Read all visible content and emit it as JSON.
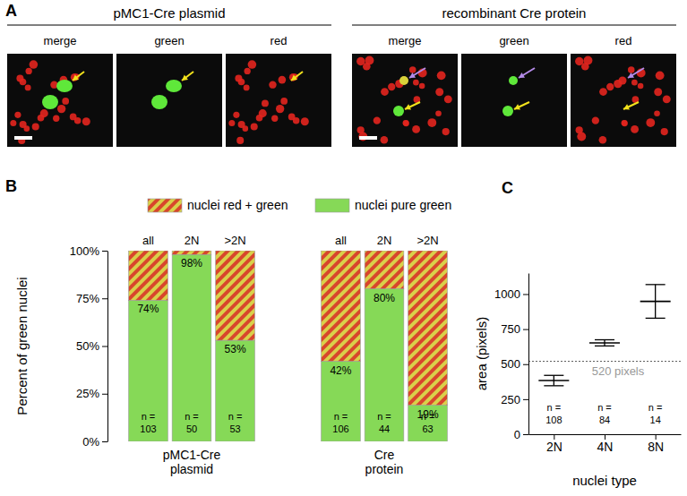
{
  "panel_a": {
    "label": "A",
    "groups": [
      {
        "title": "pMC1-Cre plasmid",
        "channels": [
          "merge",
          "green",
          "red"
        ]
      },
      {
        "title": "recombinant Cre protein",
        "channels": [
          "merge",
          "green",
          "red"
        ]
      }
    ]
  },
  "chart_data": [
    {
      "type": "bar",
      "panel": "B",
      "stacked": true,
      "legend": "top",
      "y_label": "Percent of green nuclei",
      "categories": [
        "all",
        "2N",
        ">2N",
        "all",
        "2N",
        ">2N"
      ],
      "groups": [
        "pMC1-Cre plasmid",
        "Cre protein"
      ],
      "series": [
        {
          "name": "nuclei pure green",
          "color": "#86d957",
          "values": [
            74,
            98,
            53,
            42,
            80,
            19
          ],
          "data_labels": true,
          "value_labels": [
            "74%",
            "98%",
            "53%",
            "42%",
            "80%",
            "19%"
          ]
        },
        {
          "name": "nuclei red + green",
          "color": "#d8462c",
          "values": [
            26,
            2,
            47,
            58,
            20,
            81
          ]
        }
      ],
      "n_label": "n =",
      "n": [
        103,
        50,
        53,
        106,
        44,
        63
      ],
      "ylim": [
        0,
        100
      ],
      "yticks": [
        {
          "value": 0,
          "label": "0%"
        },
        {
          "value": 25,
          "label": "25%"
        },
        {
          "value": 50,
          "label": "50%"
        },
        {
          "value": 75,
          "label": "75%"
        },
        {
          "value": 100,
          "label": "100%"
        }
      ]
    },
    {
      "type": "errorbar",
      "panel": "C",
      "y_label": "area (pixels)",
      "x_label": "nuclei type",
      "categories": [
        "2N",
        "4N",
        "8N"
      ],
      "values": [
        383,
        652,
        948
      ],
      "errors": [
        37,
        22,
        120
      ],
      "color": "#000000",
      "n_label": "n =",
      "n": [
        108,
        84,
        14
      ],
      "reference": {
        "value": 520,
        "label": "520 pixels"
      },
      "ylim": [
        0,
        1150
      ],
      "yticks": [
        0,
        250,
        500,
        750,
        1000
      ]
    }
  ]
}
